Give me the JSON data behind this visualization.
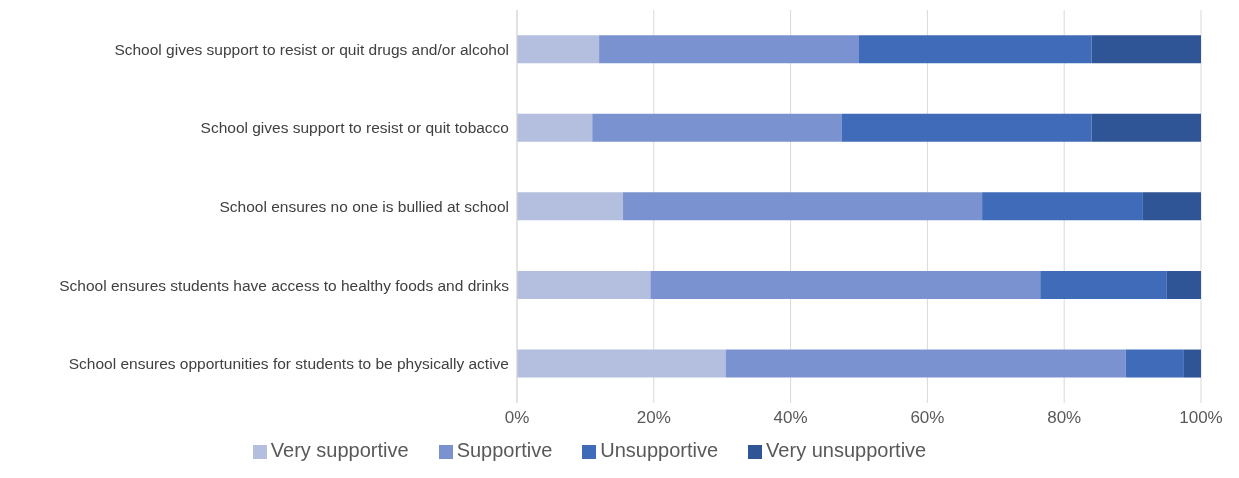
{
  "chart_data": {
    "type": "bar",
    "orientation": "horizontal",
    "stacked": true,
    "categories": [
      "School gives support to resist or quit drugs and/or alcohol",
      "School gives support to resist or quit tobacco",
      "School ensures no one is bullied at school",
      "School ensures students have access to healthy foods and drinks",
      "School ensures opportunities for students to be physically active"
    ],
    "series": [
      {
        "name": "Very supportive",
        "color": "#b4bfdf",
        "values": [
          12,
          11,
          15.5,
          19.5,
          30.5
        ]
      },
      {
        "name": "Supportive",
        "color": "#7a93d0",
        "values": [
          38,
          36.5,
          52.5,
          57,
          58.5
        ]
      },
      {
        "name": "Unsupportive",
        "color": "#3f6bb9",
        "values": [
          34,
          36.5,
          23.5,
          18.5,
          8.5
        ]
      },
      {
        "name": "Very unsupportive",
        "color": "#2f5597",
        "values": [
          16,
          16,
          8.5,
          5,
          2.5
        ]
      }
    ],
    "xlim": [
      0,
      100
    ],
    "xticks": [
      {
        "value": 0,
        "label": "0%"
      },
      {
        "value": 20,
        "label": "20%"
      },
      {
        "value": 40,
        "label": "40%"
      },
      {
        "value": 60,
        "label": "60%"
      },
      {
        "value": 80,
        "label": "80%"
      },
      {
        "value": 100,
        "label": "100%"
      }
    ],
    "grid": "x",
    "legend": "bottom"
  }
}
